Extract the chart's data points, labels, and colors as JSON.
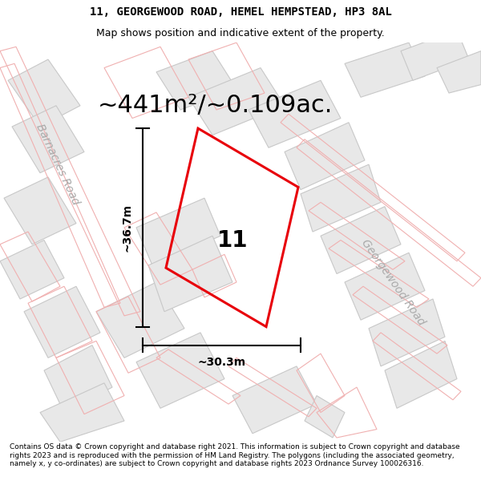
{
  "title_line1": "11, GEORGEWOOD ROAD, HEMEL HEMPSTEAD, HP3 8AL",
  "title_line2": "Map shows position and indicative extent of the property.",
  "area_text": "~441m²/~0.109ac.",
  "property_number": "11",
  "dim_vertical": "~36.7m",
  "dim_horizontal": "~30.3m",
  "road_label_left": "Barnacres Road",
  "road_label_right": "Georgewood Road",
  "footer_text": "Contains OS data © Crown copyright and database right 2021. This information is subject to Crown copyright and database rights 2023 and is reproduced with the permission of HM Land Registry. The polygons (including the associated geometry, namely x, y co-ordinates) are subject to Crown copyright and database rights 2023 Ordnance Survey 100026316.",
  "bg_color": "#f8f7f7",
  "plot_red": "#e8000a",
  "plot_fill": "none",
  "building_fill": "#e8e8e8",
  "building_edge_gray": "#c8c8c8",
  "building_edge_pink": "#f0b0b0",
  "road_label_color": "#aaaaaa",
  "title_fontsize": 10,
  "subtitle_fontsize": 9,
  "area_fontsize": 22,
  "footer_fontsize": 6.5
}
